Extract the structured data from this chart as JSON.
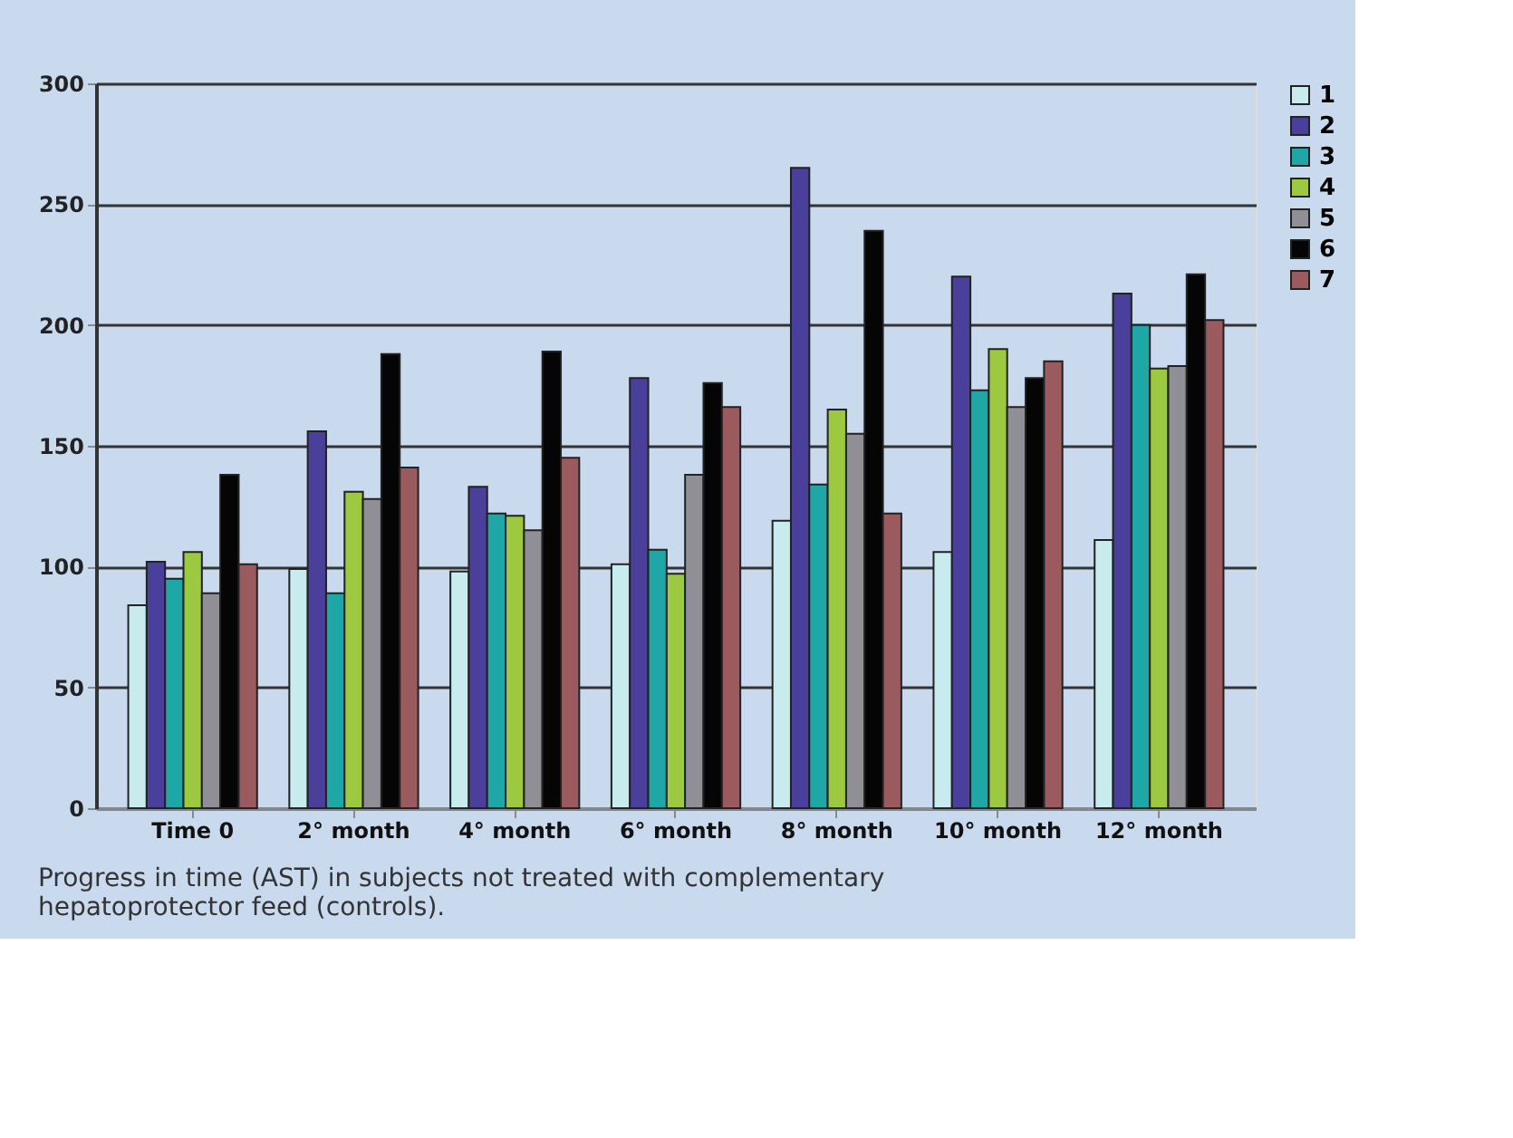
{
  "chart_data": {
    "type": "bar",
    "categories": [
      "Time 0",
      "2° month",
      "4° month",
      "6° month",
      "8° month",
      "10° month",
      "12° month"
    ],
    "series": [
      {
        "name": "1",
        "color": "#c8ecee",
        "values": [
          84,
          99,
          98,
          101,
          119,
          106,
          111
        ]
      },
      {
        "name": "2",
        "color": "#4a3f9a",
        "values": [
          102,
          156,
          133,
          178,
          265,
          220,
          213
        ]
      },
      {
        "name": "3",
        "color": "#1fa7a8",
        "values": [
          95,
          89,
          122,
          107,
          134,
          173,
          200
        ]
      },
      {
        "name": "4",
        "color": "#9cc93f",
        "values": [
          106,
          131,
          121,
          97,
          165,
          190,
          182
        ]
      },
      {
        "name": "5",
        "color": "#8f8f95",
        "values": [
          89,
          128,
          115,
          138,
          155,
          166,
          183
        ]
      },
      {
        "name": "6",
        "color": "#050505",
        "values": [
          138,
          188,
          189,
          176,
          239,
          178,
          221
        ]
      },
      {
        "name": "7",
        "color": "#9a5a5e",
        "values": [
          101,
          141,
          145,
          166,
          122,
          185,
          202
        ]
      }
    ],
    "ylim": [
      0,
      300
    ],
    "yticks": [
      0,
      50,
      100,
      150,
      200,
      250,
      300
    ],
    "grid": "y",
    "legend": "right",
    "annotations": [
      "Progress in time (AST) in subjects not treated with complementary hepatoprotector feed (controls)."
    ]
  }
}
